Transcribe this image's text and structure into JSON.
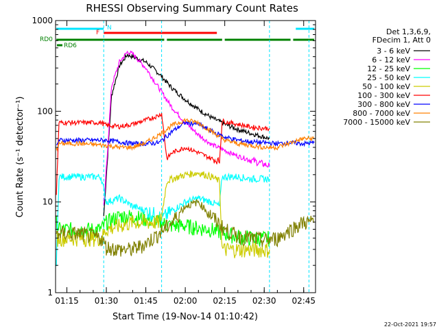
{
  "chart_data": {
    "type": "line",
    "title": "RHESSI Observing Summary Count Rates",
    "xlabel": "Start Time (19-Nov-14 01:10:42)",
    "ylabel": "Count Rate (s⁻¹ detector⁻¹)",
    "x_unit": "minutes after 01:00 UT",
    "xlim": [
      70.7,
      169.5
    ],
    "ylim": [
      1,
      1000
    ],
    "yscale": "log",
    "x_ticks": [
      "01:15",
      "01:30",
      "01:45",
      "02:00",
      "02:15",
      "02:30",
      "02:45"
    ],
    "y_ticks": [
      "1",
      "10",
      "100",
      "1000"
    ],
    "legend_header": [
      "Det 1,3,6,9,",
      "FDecim 1, Att 0"
    ],
    "legend_position": "right",
    "datestamp": "22-Oct-2021 19:57",
    "flags": [
      {
        "label": "N",
        "color": "#00e5ff"
      },
      {
        "label": "F",
        "color": "#ff0000"
      },
      {
        "label": "RD0",
        "color": "#008000"
      },
      {
        "label": "RD6",
        "color": "#008000"
      }
    ],
    "flag_bars": [
      {
        "flag": "N",
        "color": "#00e5ff",
        "segments": [
          [
            71,
            89
          ],
          [
            162,
            169
          ]
        ]
      },
      {
        "flag": "F",
        "color": "#ff0000",
        "segments": [
          [
            89,
            132
          ]
        ]
      },
      {
        "flag": "RD0",
        "color": "#008000",
        "segments": [
          [
            71,
            112
          ],
          [
            113,
            134
          ],
          [
            135,
            160
          ],
          [
            161,
            169
          ]
        ]
      }
    ],
    "vlines": [
      89,
      111,
      152,
      167
    ],
    "series": [
      {
        "name": "3 - 6 keV",
        "color": "#000000",
        "x": [
          71,
          88,
          89,
          92,
          95,
          98,
          100,
          105,
          110,
          115,
          120,
          125,
          130,
          135,
          140,
          145,
          150,
          152
        ],
        "y": [
          null,
          null,
          7,
          150,
          320,
          420,
          400,
          350,
          260,
          180,
          135,
          105,
          85,
          72,
          63,
          57,
          52,
          50
        ]
      },
      {
        "name": "6 - 12 keV",
        "color": "#ff00ff",
        "x": [
          71,
          88,
          89,
          92,
          95,
          98,
          100,
          105,
          110,
          115,
          120,
          125,
          130,
          135,
          140,
          145,
          150,
          152
        ],
        "y": [
          null,
          null,
          8,
          190,
          350,
          450,
          430,
          300,
          180,
          110,
          75,
          55,
          43,
          37,
          32,
          29,
          26,
          25
        ]
      },
      {
        "name": "12 - 25 keV",
        "color": "#00ff00",
        "x": [
          71,
          72,
          88,
          90,
          95,
          100,
          105,
          110,
          115,
          120,
          125,
          130,
          135,
          140,
          145,
          150,
          152
        ],
        "y": [
          6,
          5,
          5,
          6,
          7,
          7,
          6.5,
          6,
          5.5,
          5.5,
          5.2,
          5,
          4.5,
          4.2,
          4,
          4,
          4
        ]
      },
      {
        "name": "25 - 50 keV",
        "color": "#00ffff",
        "x": [
          71,
          72,
          88,
          90,
          95,
          100,
          105,
          110,
          111,
          115,
          120,
          125,
          130,
          133,
          134,
          140,
          145,
          150,
          152
        ],
        "y": [
          2,
          19,
          19,
          10,
          11,
          9,
          8,
          7,
          6.5,
          8,
          10,
          11,
          10,
          9,
          19,
          19,
          18,
          18,
          18
        ]
      },
      {
        "name": "50 - 100 keV",
        "color": "#cccc00",
        "x": [
          71,
          72,
          88,
          90,
          100,
          110,
          111,
          113,
          115,
          120,
          125,
          130,
          133,
          134,
          145,
          152
        ],
        "y": [
          4,
          4,
          4,
          5,
          6,
          6,
          7,
          17,
          18,
          20,
          21,
          19,
          17,
          3,
          3,
          3
        ]
      },
      {
        "name": "100 - 300 keV",
        "color": "#ff0000",
        "x": [
          71,
          72,
          88,
          90,
          95,
          100,
          105,
          110,
          111,
          113,
          115,
          120,
          125,
          130,
          133,
          134,
          140,
          145,
          150,
          152
        ],
        "y": [
          12,
          75,
          75,
          70,
          68,
          72,
          80,
          90,
          95,
          30,
          35,
          40,
          35,
          30,
          28,
          78,
          72,
          67,
          65,
          65
        ]
      },
      {
        "name": "300 - 800 keV",
        "color": "#0000ff",
        "x": [
          71,
          72,
          80,
          90,
          95,
          100,
          105,
          110,
          115,
          120,
          125,
          130,
          135,
          140,
          145,
          150,
          155,
          160,
          165,
          169
        ],
        "y": [
          40,
          48,
          48,
          48,
          46,
          44,
          44,
          45,
          60,
          75,
          72,
          60,
          52,
          48,
          46,
          45,
          44,
          45,
          44,
          45
        ]
      },
      {
        "name": "800 - 7000 keV",
        "color": "#ff8000",
        "x": [
          71,
          72,
          80,
          90,
          95,
          100,
          105,
          110,
          115,
          120,
          125,
          130,
          135,
          140,
          145,
          150,
          155,
          160,
          165,
          169
        ],
        "y": [
          38,
          44,
          44,
          42,
          40,
          40,
          45,
          55,
          70,
          80,
          75,
          60,
          48,
          44,
          42,
          40,
          40,
          45,
          50,
          50
        ]
      },
      {
        "name": "7000 - 15000 keV",
        "color": "#808000",
        "x": [
          71,
          72,
          80,
          88,
          90,
          95,
          100,
          105,
          110,
          115,
          120,
          125,
          130,
          135,
          140,
          145,
          150,
          155,
          160,
          165,
          169
        ],
        "y": [
          4.5,
          4.5,
          4.5,
          4,
          3.2,
          3,
          3,
          3.5,
          4.5,
          6,
          9,
          10,
          7,
          5,
          4.2,
          4,
          3.8,
          4,
          5,
          6,
          6
        ]
      }
    ]
  }
}
